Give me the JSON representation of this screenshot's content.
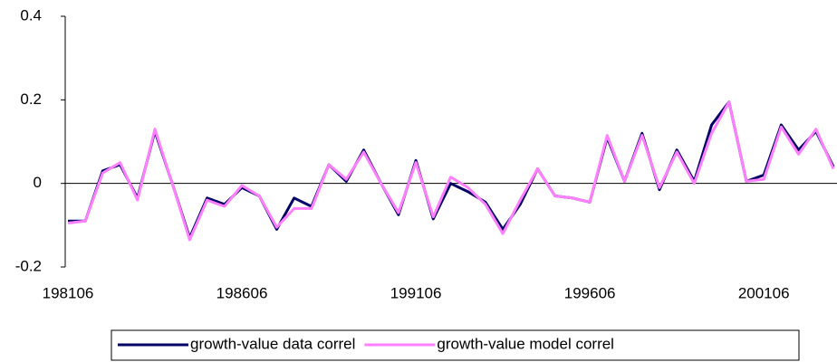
{
  "chart_data": {
    "type": "line",
    "categories": [
      "198106",
      null,
      null,
      null,
      null,
      null,
      null,
      null,
      null,
      null,
      "198606",
      null,
      null,
      null,
      null,
      null,
      null,
      null,
      null,
      null,
      "199106",
      null,
      null,
      null,
      null,
      null,
      null,
      null,
      null,
      null,
      "199606",
      null,
      null,
      null,
      null,
      null,
      null,
      null,
      null,
      null,
      "200106",
      null,
      null,
      null,
      null
    ],
    "series": [
      {
        "name": "growth-value data correl",
        "color": "#000066",
        "values": [
          -0.09,
          -0.09,
          0.03,
          0.045,
          -0.035,
          0.125,
          0.0,
          -0.13,
          -0.035,
          -0.05,
          -0.01,
          -0.03,
          -0.11,
          -0.035,
          -0.055,
          0.045,
          0.005,
          0.08,
          0.0,
          -0.075,
          0.055,
          -0.085,
          0.0,
          -0.02,
          -0.045,
          -0.11,
          -0.05,
          0.035,
          -0.03,
          -0.035,
          -0.045,
          0.11,
          0.005,
          0.12,
          -0.015,
          0.08,
          0.005,
          0.14,
          0.195,
          0.005,
          0.02,
          0.14,
          0.08,
          0.125,
          0.04
        ]
      },
      {
        "name": "growth-value model correl",
        "color": "#ff80ff",
        "values": [
          -0.095,
          -0.09,
          0.025,
          0.05,
          -0.04,
          0.13,
          0.0,
          -0.135,
          -0.04,
          -0.055,
          -0.005,
          -0.03,
          -0.105,
          -0.06,
          -0.06,
          0.045,
          0.01,
          0.075,
          0.0,
          -0.07,
          0.05,
          -0.08,
          0.015,
          -0.01,
          -0.05,
          -0.12,
          -0.04,
          0.035,
          -0.03,
          -0.035,
          -0.045,
          0.115,
          0.005,
          0.115,
          -0.01,
          0.075,
          0.0,
          0.12,
          0.195,
          0.005,
          0.01,
          0.135,
          0.07,
          0.13,
          0.035
        ]
      }
    ],
    "ylim": [
      -0.2,
      0.4
    ],
    "yticks": [
      {
        "value": -0.2,
        "label": "-0.2"
      },
      0,
      0.2,
      0.4
    ],
    "grid": false,
    "legend": "bottom"
  }
}
